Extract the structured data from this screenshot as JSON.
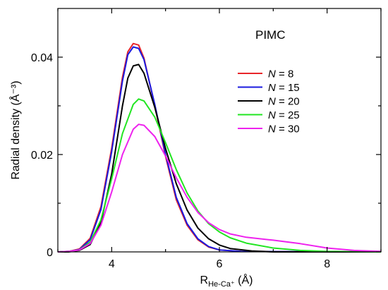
{
  "chart_data": {
    "type": "line",
    "annotation": "PIMC",
    "ylabel": "Radial density (Å⁻³)",
    "xlabel_main": "R",
    "xlabel_sub": "He-Ca⁺",
    "xlabel_unit": " (Å)",
    "xlim": [
      3.0,
      9.0
    ],
    "ylim": [
      0.0,
      0.05
    ],
    "x_ticks": [
      4,
      6,
      8
    ],
    "y_ticks": [
      0,
      0.02,
      0.04
    ],
    "x_tick_labels": [
      "4",
      "6",
      "8"
    ],
    "y_tick_labels": [
      "0",
      "0.02",
      "0.04"
    ],
    "grid": false,
    "legend_position": "upper-right",
    "series": [
      {
        "name": "N = 8",
        "legend_var": "N",
        "legend_value": " = 8",
        "color": "#e8262a",
        "points": [
          [
            3.0,
            0.0
          ],
          [
            3.2,
            0.0001
          ],
          [
            3.4,
            0.0006
          ],
          [
            3.6,
            0.0028
          ],
          [
            3.8,
            0.0093
          ],
          [
            4.0,
            0.0213
          ],
          [
            4.2,
            0.0359
          ],
          [
            4.3,
            0.0411
          ],
          [
            4.4,
            0.0428
          ],
          [
            4.5,
            0.0425
          ],
          [
            4.6,
            0.0398
          ],
          [
            4.8,
            0.03
          ],
          [
            5.0,
            0.0196
          ],
          [
            5.2,
            0.0107
          ],
          [
            5.4,
            0.0055
          ],
          [
            5.6,
            0.0025
          ],
          [
            5.8,
            0.001
          ],
          [
            6.0,
            0.0004
          ],
          [
            6.4,
            0.0001
          ],
          [
            9.0,
            0.0
          ]
        ]
      },
      {
        "name": "N = 15",
        "legend_var": "N",
        "legend_value": " = 15",
        "color": "#1a1adf",
        "points": [
          [
            3.0,
            0.0
          ],
          [
            3.2,
            0.0001
          ],
          [
            3.4,
            0.0005
          ],
          [
            3.6,
            0.0025
          ],
          [
            3.8,
            0.0087
          ],
          [
            4.0,
            0.0206
          ],
          [
            4.2,
            0.0351
          ],
          [
            4.3,
            0.0405
          ],
          [
            4.4,
            0.0421
          ],
          [
            4.5,
            0.0418
          ],
          [
            4.6,
            0.0395
          ],
          [
            4.8,
            0.0303
          ],
          [
            5.0,
            0.02
          ],
          [
            5.2,
            0.0112
          ],
          [
            5.4,
            0.0058
          ],
          [
            5.6,
            0.0027
          ],
          [
            5.8,
            0.0011
          ],
          [
            6.0,
            0.0004
          ],
          [
            6.4,
            0.0001
          ],
          [
            9.0,
            0.0
          ]
        ]
      },
      {
        "name": "N = 20",
        "legend_var": "N",
        "legend_value": " = 20",
        "color": "#000000",
        "points": [
          [
            3.0,
            0.0
          ],
          [
            3.2,
            0.0
          ],
          [
            3.4,
            0.0003
          ],
          [
            3.6,
            0.0015
          ],
          [
            3.8,
            0.006
          ],
          [
            4.0,
            0.016
          ],
          [
            4.2,
            0.03
          ],
          [
            4.3,
            0.0357
          ],
          [
            4.4,
            0.0382
          ],
          [
            4.5,
            0.0385
          ],
          [
            4.6,
            0.0367
          ],
          [
            4.8,
            0.0297
          ],
          [
            5.0,
            0.0212
          ],
          [
            5.2,
            0.014
          ],
          [
            5.4,
            0.0086
          ],
          [
            5.6,
            0.0049
          ],
          [
            5.8,
            0.0027
          ],
          [
            6.0,
            0.0014
          ],
          [
            6.2,
            0.0007
          ],
          [
            6.6,
            0.0002
          ],
          [
            7.0,
            0.0
          ],
          [
            9.0,
            0.0
          ]
        ]
      },
      {
        "name": "N = 25",
        "legend_var": "N",
        "legend_value": " = 25",
        "color": "#22e622",
        "points": [
          [
            3.0,
            0.0
          ],
          [
            3.2,
            0.0001
          ],
          [
            3.4,
            0.0004
          ],
          [
            3.6,
            0.002
          ],
          [
            3.8,
            0.0066
          ],
          [
            4.0,
            0.015
          ],
          [
            4.2,
            0.0243
          ],
          [
            4.4,
            0.0303
          ],
          [
            4.5,
            0.0314
          ],
          [
            4.6,
            0.031
          ],
          [
            4.8,
            0.0277
          ],
          [
            5.0,
            0.0224
          ],
          [
            5.2,
            0.0169
          ],
          [
            5.4,
            0.0121
          ],
          [
            5.6,
            0.0084
          ],
          [
            5.8,
            0.0058
          ],
          [
            6.0,
            0.0041
          ],
          [
            6.2,
            0.0029
          ],
          [
            6.5,
            0.0018
          ],
          [
            7.0,
            0.0008
          ],
          [
            7.5,
            0.0003
          ],
          [
            8.0,
            0.0001
          ],
          [
            9.0,
            0.0
          ]
        ]
      },
      {
        "name": "N = 30",
        "legend_var": "N",
        "legend_value": " = 30",
        "color": "#ee22ee",
        "points": [
          [
            3.0,
            0.0
          ],
          [
            3.2,
            0.0001
          ],
          [
            3.4,
            0.0004
          ],
          [
            3.6,
            0.0017
          ],
          [
            3.8,
            0.0055
          ],
          [
            4.0,
            0.0123
          ],
          [
            4.2,
            0.02
          ],
          [
            4.4,
            0.0252
          ],
          [
            4.5,
            0.0262
          ],
          [
            4.6,
            0.026
          ],
          [
            4.8,
            0.0237
          ],
          [
            5.0,
            0.0197
          ],
          [
            5.2,
            0.0152
          ],
          [
            5.4,
            0.0112
          ],
          [
            5.6,
            0.0081
          ],
          [
            5.8,
            0.006
          ],
          [
            6.0,
            0.0046
          ],
          [
            6.2,
            0.0037
          ],
          [
            6.5,
            0.003
          ],
          [
            7.0,
            0.0024
          ],
          [
            7.5,
            0.0017
          ],
          [
            8.0,
            0.0008
          ],
          [
            8.5,
            0.0003
          ],
          [
            9.0,
            0.0001
          ]
        ]
      }
    ]
  }
}
